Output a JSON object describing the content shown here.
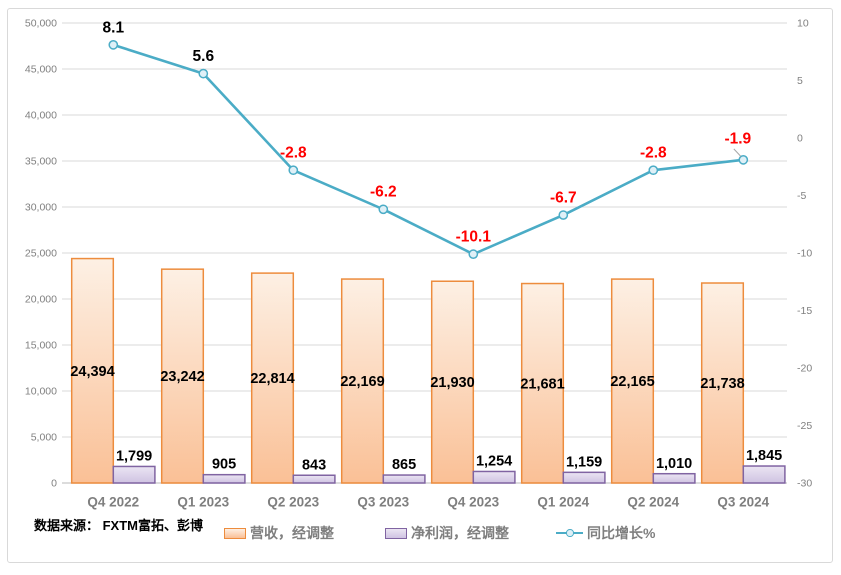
{
  "source_note": "数据来源： FXTM富拓、彭博",
  "chart_data": {
    "type": "combo",
    "title": "",
    "categories": [
      "Q4 2022",
      "Q1 2023",
      "Q2 2023",
      "Q3 2023",
      "Q4 2023",
      "Q1 2024",
      "Q2 2024",
      "Q3 2024"
    ],
    "series": [
      {
        "name": "营收，经调整",
        "type": "bar",
        "axis": "left",
        "values": [
          24394,
          23242,
          22814,
          22169,
          21930,
          21681,
          22165,
          21738
        ],
        "border_color": "#ED8C3D",
        "fill_top": "#FDF0E4",
        "fill_bottom": "#FAC096",
        "label_color": "#000000"
      },
      {
        "name": "净利润，经调整",
        "type": "bar",
        "axis": "left",
        "values": [
          1799,
          905,
          843,
          865,
          1254,
          1159,
          1010,
          1845
        ],
        "border_color": "#8064A2",
        "fill_top": "#EBE5F3",
        "fill_bottom": "#CFC3E2",
        "label_color": "#000000"
      },
      {
        "name": "同比增长%",
        "type": "line",
        "axis": "right",
        "values": [
          8.1,
          5.6,
          -2.8,
          -6.2,
          -10.1,
          -6.7,
          -2.8,
          -1.9
        ],
        "color": "#4BACC6",
        "marker_fill": "#DFF0F7",
        "positive_label_color": "#000000",
        "negative_label_color": "#FF0000"
      }
    ],
    "left_axis": {
      "min": 0,
      "max": 50000,
      "step": 5000
    },
    "right_axis": {
      "min": -30,
      "max": 10,
      "step": 5
    },
    "grid": true,
    "legend_position": "bottom"
  },
  "colors": {
    "gridline": "#D9D9D9",
    "axis_line": "#C6C6C6",
    "axis_text": "#808080",
    "category_text": "#7F7F7F",
    "legend_text": "#7F7F7F",
    "frame_border": "#D9D9D9",
    "leader_line": "#A6A6A6"
  }
}
